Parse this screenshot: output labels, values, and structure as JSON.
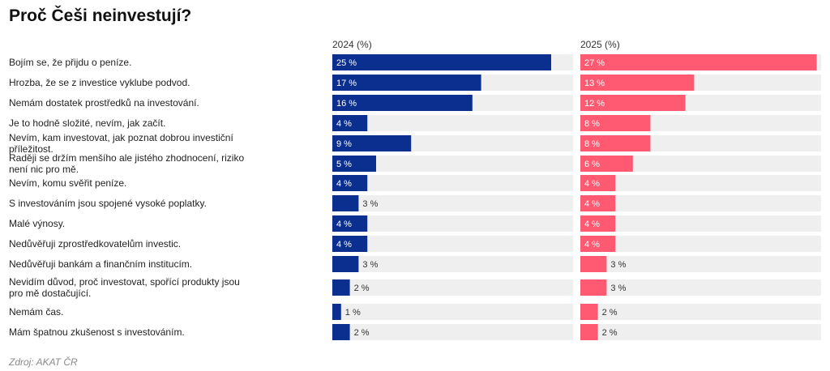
{
  "title": "Proč Češi neinvestují?",
  "source": "Zdroj: AKAT ČR",
  "colors": {
    "series_2024": "#0a2f8f",
    "series_2025": "#ff5a72",
    "track": "#efefef"
  },
  "chart_data": {
    "type": "bar",
    "orientation": "horizontal",
    "title": "Proč Češi neinvestují?",
    "categories": [
      "Bojím se, že přijdu o peníze.",
      "Hrozba, že se z investice vyklube podvod.",
      "Nemám dostatek prostředků na investování.",
      "Je to hodně složité, nevím, jak začít.",
      "Nevím, kam investovat, jak poznat dobrou investiční příležitost.",
      "Raději se držím menšího ale jistého zhodnocení, riziko není nic pro mě.",
      "Nevím, komu svěřit peníze.",
      "S investováním jsou spojené vysoké poplatky.",
      "Malé výnosy.",
      "Nedůvěřuji zprostředkovatelům investic.",
      "Nedůvěřuji bankám a finančním institucím.",
      "Nevidím důvod, proč investovat, spořící produkty jsou pro mě dostačující.",
      "Nemám čas.",
      "Mám špatnou zkušenost s investováním."
    ],
    "series": [
      {
        "name": "2024 (%)",
        "values": [
          25,
          17,
          16,
          4,
          9,
          5,
          4,
          3,
          4,
          4,
          3,
          2,
          1,
          2
        ],
        "labels": [
          "25 %",
          "17 %",
          "16 %",
          "4 %",
          "9 %",
          "5 %",
          "4 %",
          "3 %",
          "4 %",
          "4 %",
          "3 %",
          "2 %",
          "1 %",
          "2 %"
        ]
      },
      {
        "name": "2025 (%)",
        "values": [
          27,
          13,
          12,
          8,
          8,
          6,
          4,
          4,
          4,
          4,
          3,
          3,
          2,
          2
        ],
        "labels": [
          "27 %",
          "13 %",
          "12 %",
          "8 %",
          "8 %",
          "6 %",
          "4 %",
          "4 %",
          "4 %",
          "4 %",
          "3 %",
          "3 %",
          "2 %",
          "2 %"
        ]
      }
    ],
    "xlim": [
      0,
      27.5
    ]
  }
}
